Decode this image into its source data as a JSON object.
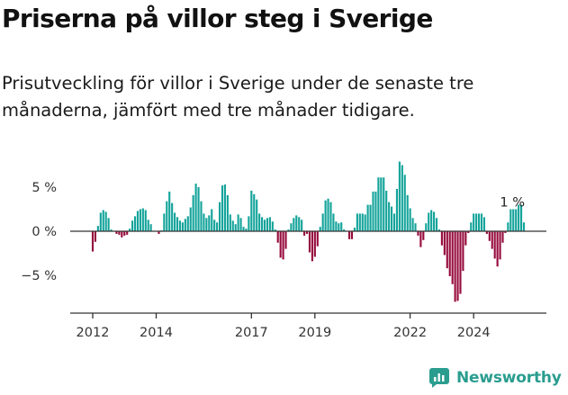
{
  "title": "Priserna på villor steg i Sverige",
  "subtitle": "Prisutveckling för villor i Sverige under de senaste tre månaderna, jämfört med tre månader tidigare.",
  "brand": {
    "name": "Newsworthy",
    "icon": "newsworthy-logo-icon"
  },
  "colors": {
    "positive": "#13a39a",
    "negative": "#960a3c",
    "axis": "#333333",
    "text": "#333333"
  },
  "chart_data": {
    "type": "bar",
    "title": "Priserna på villor steg i Sverige",
    "subtitle": "Prisutveckling för villor i Sverige under de senaste tre månaderna, jämfört med tre månader tidigare.",
    "xlabel": "",
    "ylabel": "",
    "x_unit": "month",
    "start_month": "2012-01",
    "ylim": [
      -9,
      8
    ],
    "yticks": [
      {
        "value": 5,
        "label": "5 %"
      },
      {
        "value": 0,
        "label": "0 %"
      },
      {
        "value": -5,
        "label": "−5 %"
      }
    ],
    "xticks": [
      "2012",
      "2014",
      "2017",
      "2019",
      "2022",
      "2024"
    ],
    "grid": false,
    "last_value_label": "1 %",
    "values": [
      -2.3,
      -1.2,
      0.6,
      2.1,
      2.4,
      2.2,
      1.5,
      0.2,
      0,
      -0.3,
      -0.4,
      -0.7,
      -0.5,
      -0.4,
      0.3,
      1.2,
      1.7,
      2.3,
      2.5,
      2.6,
      2.4,
      1.3,
      0.8,
      0,
      0,
      -0.3,
      0.1,
      2.0,
      3.4,
      4.5,
      3.2,
      2.1,
      1.6,
      1.2,
      1.0,
      1.4,
      1.7,
      2.7,
      4.1,
      5.4,
      5.0,
      3.4,
      2.0,
      1.5,
      1.8,
      2.5,
      1.3,
      1.0,
      3.3,
      5.2,
      5.3,
      4.1,
      1.9,
      1.2,
      0.8,
      1.9,
      1.5,
      0.5,
      0.3,
      1.7,
      4.6,
      4.2,
      3.6,
      2.0,
      1.6,
      1.3,
      1.5,
      1.6,
      1.1,
      0.2,
      -1.3,
      -3.0,
      -3.2,
      -2.0,
      0.2,
      0.9,
      1.5,
      1.8,
      1.6,
      1.3,
      -0.5,
      -0.3,
      -2.4,
      -3.4,
      -2.9,
      -1.7,
      0.5,
      2.0,
      3.5,
      3.7,
      3.3,
      2.0,
      1.1,
      0.9,
      1.0,
      0.2,
      0,
      -0.9,
      -0.9,
      0.4,
      2.0,
      2.0,
      2.0,
      1.9,
      3.0,
      3.0,
      4.5,
      4.5,
      6.1,
      6.1,
      6.1,
      4.6,
      3.3,
      2.8,
      2.0,
      4.8,
      7.9,
      7.5,
      6.4,
      4.1,
      2.6,
      1.5,
      0.9,
      -0.5,
      -1.8,
      -1.0,
      0.9,
      2.1,
      2.4,
      2.2,
      1.5,
      0.2,
      -1.6,
      -2.7,
      -4.2,
      -5.1,
      -6.0,
      -8.0,
      -7.9,
      -7.1,
      -4.5,
      -1.6,
      -0.2,
      1.0,
      2.0,
      2.0,
      2.0,
      2.0,
      1.6,
      -0.3,
      -1.1,
      -2.0,
      -3.1,
      -4.0,
      -3.2,
      -1.3,
      -0.2,
      1.0,
      2.5,
      2.5,
      2.5,
      3.0,
      3.0,
      1.0
    ]
  }
}
